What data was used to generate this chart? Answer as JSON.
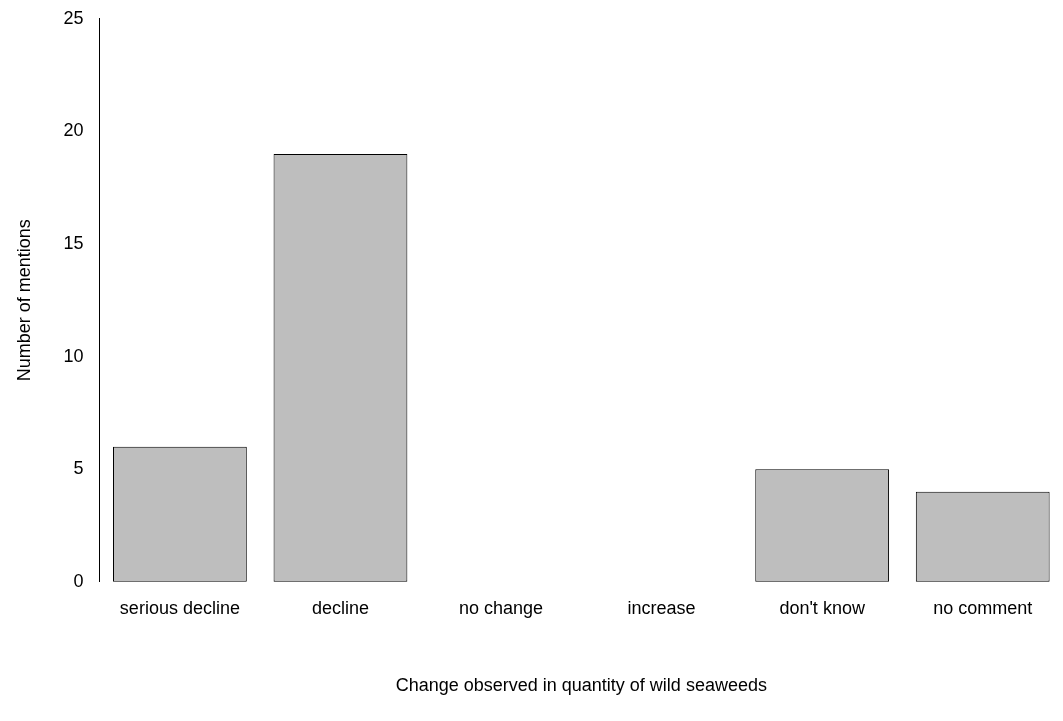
{
  "chart_data": {
    "type": "bar",
    "xlabel": "Change observed in quantity of wild seaweeds",
    "ylabel": "Number of mentions",
    "categories": [
      "serious decline",
      "decline",
      "no change",
      "increase",
      "don't know",
      "no comment"
    ],
    "values": [
      6,
      19,
      0,
      0,
      5,
      4
    ],
    "color": "#bebebe",
    "ylim": [
      0,
      25
    ],
    "yticks": [
      0,
      5,
      10,
      15,
      20,
      25
    ]
  }
}
